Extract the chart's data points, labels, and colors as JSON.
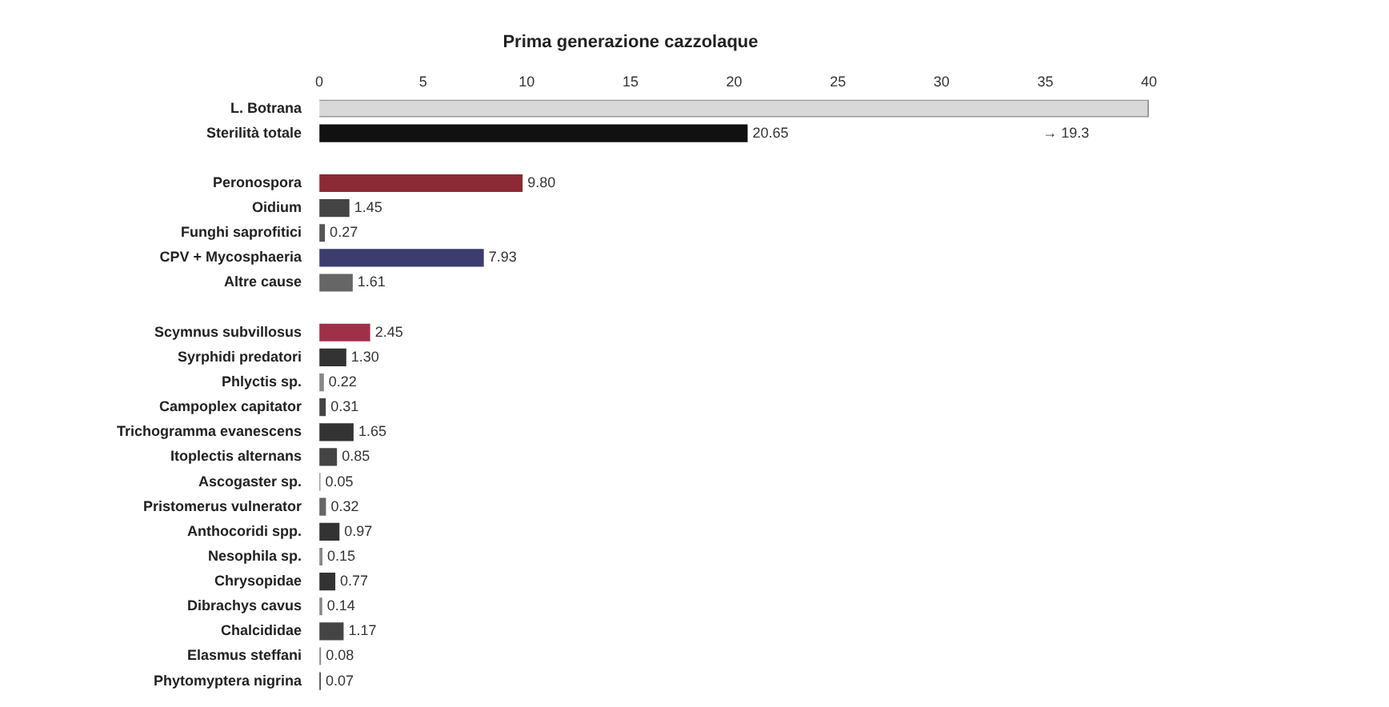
{
  "chart_data": {
    "type": "bar",
    "orientation": "horizontal",
    "title": "Prima generazione cazzolaque",
    "categories": [
      "L. Botrana",
      "Sterilità totale",
      null,
      "Peronospora",
      "Oidium",
      "Funghi saprofitici",
      "CPV + Mycosphaeria",
      "Altre cause",
      null,
      "Scymnus subvillosus",
      "Syrphidi predatori",
      "Phlyctis sp.",
      "Campoplex capitator",
      "Trichogramma evanescens",
      "Itoplectis alternans",
      "Ascogaster sp.",
      "Pristomerus vulnerator",
      "Anthocoridi spp.",
      "Nesophila sp.",
      "Chrysopidae",
      "Dibrachys cavus",
      "Chalcididae",
      "Elasmus steffani",
      "Phytomyptera nigrina"
    ],
    "values": [
      40,
      20.65,
      null,
      9.8,
      1.45,
      0.27,
      7.93,
      1.61,
      null,
      2.45,
      1.3,
      0.22,
      0.31,
      1.65,
      0.85,
      0.05,
      0.32,
      0.97,
      0.15,
      0.77,
      0.14,
      1.17,
      0.08,
      0.07
    ],
    "value_labels": [
      null,
      "20.65",
      null,
      "9.80",
      "1.45",
      "0.27",
      "7.93",
      "1.61",
      null,
      "2.45",
      "1.30",
      "0.22",
      "0.31",
      "1.65",
      "0.85",
      "0.05",
      "0.32",
      "0.97",
      "0.15",
      "0.77",
      "0.14",
      "1.17",
      "0.08",
      "0.07"
    ],
    "colors": [
      "#d8d8d8",
      "#111111",
      null,
      "#8b2a35",
      "#444444",
      "#555555",
      "#3c3c6e",
      "#666666",
      null,
      "#a03048",
      "#333333",
      "#888888",
      "#444444",
      "#333333",
      "#444444",
      "#888888",
      "#666666",
      "#333333",
      "#888888",
      "#333333",
      "#888888",
      "#444444",
      "#888888",
      "#444444"
    ],
    "xlim": [
      0,
      40
    ],
    "xticks": [
      0,
      5,
      10,
      15,
      20,
      25,
      30,
      35,
      40
    ],
    "grid": false,
    "legend": false,
    "annotations": [
      "→ 19.3"
    ]
  }
}
